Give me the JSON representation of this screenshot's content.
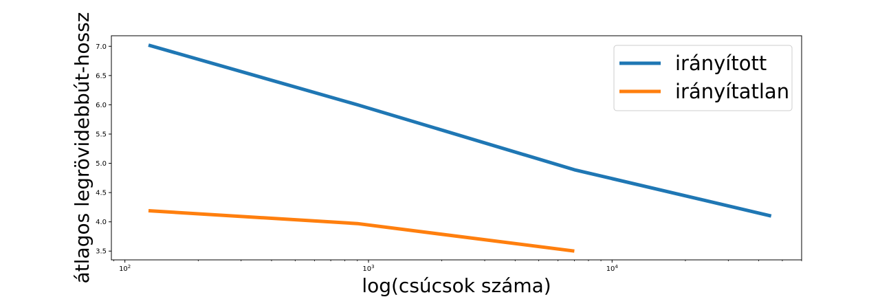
{
  "chart_data": {
    "type": "line",
    "title": "",
    "xlabel": "log(csúcsok száma)",
    "ylabel": "átlagos legrövidebbút-hossz",
    "x_scale": "log",
    "xlim": [
      88,
      60000
    ],
    "ylim": [
      3.35,
      7.18
    ],
    "x_ticks": [
      {
        "base": "10",
        "exp": "2",
        "value": 100
      },
      {
        "base": "10",
        "exp": "3",
        "value": 1000
      },
      {
        "base": "10",
        "exp": "4",
        "value": 10000
      }
    ],
    "y_ticks": [
      "3.5",
      "4.0",
      "4.5",
      "5.0",
      "5.5",
      "6.0",
      "6.5",
      "7.0"
    ],
    "grid": false,
    "legend_position": "top-right",
    "series": [
      {
        "name": "irányított",
        "color": "#1f77b4",
        "x": [
          125,
          900,
          7000,
          45000
        ],
        "y": [
          7.02,
          6.0,
          4.89,
          4.1
        ]
      },
      {
        "name": "irányítatlan",
        "color": "#ff7f0e",
        "x": [
          125,
          900,
          7000
        ],
        "y": [
          4.19,
          3.97,
          3.5
        ]
      }
    ]
  }
}
